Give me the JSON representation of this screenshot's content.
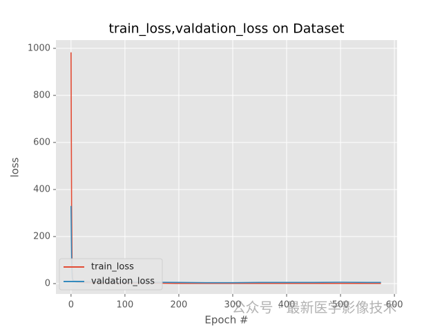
{
  "chart_data": {
    "type": "line",
    "title": "train_loss,valdation_loss on Dataset",
    "x_label": "Epoch #",
    "y_label": "loss",
    "x": [
      0,
      1,
      2,
      3,
      5,
      10,
      20,
      50,
      100,
      150,
      200,
      250,
      300,
      350,
      400,
      450,
      500,
      550,
      575
    ],
    "series": [
      {
        "name": "train_loss",
        "color": "#E24A33",
        "values": [
          983,
          330,
          60,
          20,
          10,
          6,
          4,
          3,
          2,
          2,
          1,
          1,
          1,
          1,
          1,
          1,
          1,
          1,
          1
        ]
      },
      {
        "name": "valdation_loss",
        "color": "#348ABD",
        "values": [
          330,
          100,
          30,
          15,
          12,
          11,
          10,
          8,
          7,
          6,
          5,
          4,
          4,
          5,
          5,
          5,
          6,
          5,
          5
        ]
      }
    ],
    "xlim": [
      -28,
      605
    ],
    "ylim": [
      -44,
      1035
    ],
    "xticks": [
      0,
      100,
      200,
      300,
      400,
      500,
      600
    ],
    "yticks": [
      0,
      200,
      400,
      600,
      800,
      1000
    ],
    "grid": true,
    "legend": "lower left",
    "watermark": "公众号 · 最新医学影像技术"
  }
}
